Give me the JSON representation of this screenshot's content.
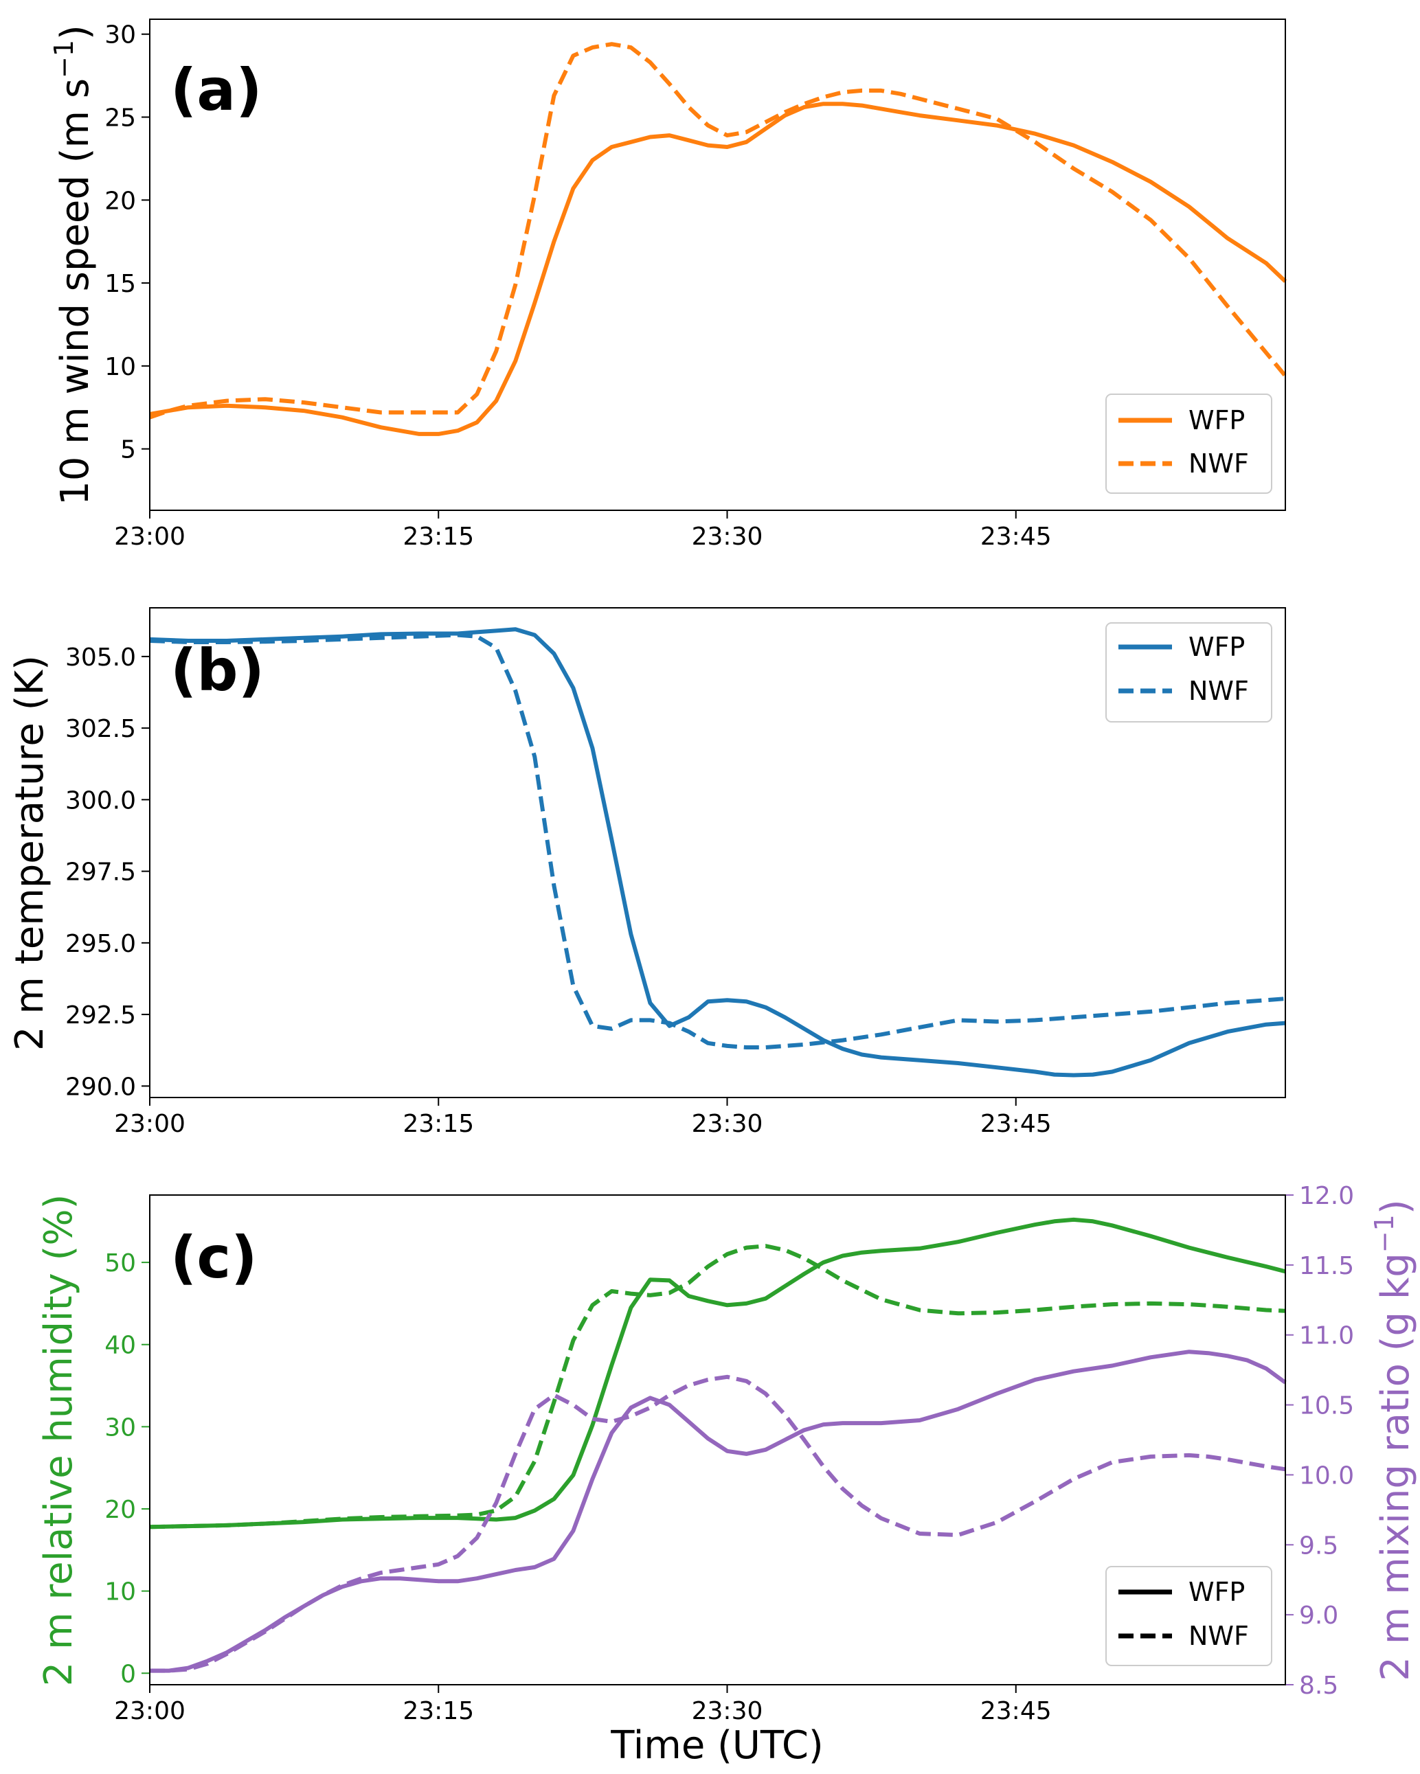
{
  "chart_data": [
    {
      "type": "line",
      "panel": "(a)",
      "ylabel": "10 m wind speed (m s",
      "ylabel_sup": "−1",
      "ylabel_end": ")",
      "x_ticks": [
        "23:00",
        "23:15",
        "23:30",
        "23:45"
      ],
      "xlim": [
        0,
        59
      ],
      "ylim": [
        1.3,
        30.9
      ],
      "y_ticks": [
        5,
        10,
        15,
        20,
        25,
        30
      ],
      "y_tick_labels": [
        "5",
        "10",
        "15",
        "20",
        "25",
        "30"
      ],
      "color": "#ff7f0e",
      "legend_position": "lower-right",
      "series": [
        {
          "name": "WFP",
          "style": "solid",
          "x": [
            0,
            2,
            4,
            6,
            8,
            10,
            12,
            14,
            15,
            16,
            17,
            18,
            19,
            20,
            21,
            22,
            23,
            24,
            25,
            26,
            27,
            28,
            29,
            30,
            31,
            32,
            33,
            34,
            35,
            36,
            37,
            38,
            39,
            40,
            42,
            44,
            46,
            48,
            50,
            52,
            54,
            56,
            58,
            59
          ],
          "values": [
            7.1,
            7.5,
            7.6,
            7.5,
            7.3,
            6.9,
            6.3,
            5.9,
            5.9,
            6.1,
            6.6,
            7.9,
            10.3,
            13.8,
            17.5,
            20.7,
            22.4,
            23.2,
            23.5,
            23.8,
            23.9,
            23.6,
            23.3,
            23.2,
            23.5,
            24.3,
            25.1,
            25.6,
            25.8,
            25.8,
            25.7,
            25.5,
            25.3,
            25.1,
            24.8,
            24.5,
            24.0,
            23.3,
            22.3,
            21.1,
            19.6,
            17.7,
            16.2,
            15.1
          ]
        },
        {
          "name": "NWF",
          "style": "dashed",
          "x": [
            0,
            1,
            2,
            4,
            6,
            8,
            10,
            12,
            14,
            16,
            17,
            18,
            19,
            20,
            21,
            22,
            23,
            24,
            25,
            26,
            27,
            28,
            29,
            30,
            31,
            32,
            33,
            34,
            35,
            36,
            37,
            38,
            39,
            40,
            42,
            44,
            46,
            48,
            50,
            52,
            54,
            56,
            58,
            59
          ],
          "values": [
            6.9,
            7.3,
            7.6,
            7.9,
            8.0,
            7.8,
            7.5,
            7.2,
            7.2,
            7.2,
            8.3,
            10.9,
            14.9,
            20.3,
            26.3,
            28.7,
            29.2,
            29.4,
            29.2,
            28.3,
            27.0,
            25.6,
            24.5,
            23.9,
            24.1,
            24.7,
            25.3,
            25.8,
            26.2,
            26.5,
            26.6,
            26.6,
            26.4,
            26.1,
            25.5,
            24.9,
            23.5,
            21.9,
            20.5,
            18.8,
            16.5,
            13.6,
            10.8,
            9.4
          ]
        }
      ]
    },
    {
      "type": "line",
      "panel": "(b)",
      "ylabel": "2 m temperature (K)",
      "x_ticks": [
        "23:00",
        "23:15",
        "23:30",
        "23:45"
      ],
      "xlim": [
        0,
        59
      ],
      "ylim": [
        289.6,
        306.7
      ],
      "y_ticks": [
        290.0,
        292.5,
        295.0,
        297.5,
        300.0,
        302.5,
        305.0
      ],
      "y_tick_labels": [
        "290.0",
        "292.5",
        "295.0",
        "297.5",
        "300.0",
        "302.5",
        "305.0"
      ],
      "color": "#1f77b4",
      "legend_position": "upper-right",
      "series": [
        {
          "name": "WFP",
          "style": "solid",
          "x": [
            0,
            2,
            4,
            6,
            8,
            10,
            12,
            14,
            16,
            17,
            18,
            19,
            20,
            21,
            22,
            23,
            24,
            25,
            26,
            27,
            28,
            29,
            30,
            31,
            32,
            33,
            34,
            35,
            36,
            37,
            38,
            40,
            42,
            44,
            46,
            47,
            48,
            49,
            50,
            52,
            54,
            56,
            58,
            59
          ],
          "values": [
            305.6,
            305.55,
            305.55,
            305.6,
            305.65,
            305.7,
            305.78,
            305.8,
            305.8,
            305.85,
            305.9,
            305.95,
            305.75,
            305.1,
            303.9,
            301.8,
            298.6,
            295.3,
            292.9,
            292.1,
            292.4,
            292.95,
            293.0,
            292.95,
            292.75,
            292.4,
            292.0,
            291.6,
            291.3,
            291.1,
            291.0,
            290.9,
            290.8,
            290.65,
            290.5,
            290.4,
            290.38,
            290.4,
            290.5,
            290.9,
            291.5,
            291.9,
            292.15,
            292.2
          ]
        },
        {
          "name": "NWF",
          "style": "dashed",
          "x": [
            0,
            2,
            4,
            6,
            8,
            10,
            12,
            14,
            16,
            17,
            18,
            19,
            20,
            21,
            22,
            23,
            24,
            25,
            26,
            27,
            28,
            29,
            30,
            31,
            32,
            34,
            36,
            38,
            40,
            42,
            44,
            46,
            48,
            50,
            52,
            54,
            56,
            58,
            59
          ],
          "values": [
            305.55,
            305.5,
            305.5,
            305.52,
            305.55,
            305.6,
            305.65,
            305.7,
            305.75,
            305.7,
            305.3,
            303.8,
            301.5,
            297.0,
            293.5,
            292.1,
            292.0,
            292.3,
            292.3,
            292.2,
            291.9,
            291.5,
            291.4,
            291.35,
            291.35,
            291.45,
            291.6,
            291.8,
            292.05,
            292.3,
            292.25,
            292.3,
            292.4,
            292.5,
            292.6,
            292.75,
            292.9,
            293.0,
            293.05
          ]
        }
      ]
    },
    {
      "type": "line",
      "panel": "(c)",
      "ylabel": "2 m relative humidity (%)",
      "ylabel2": "2 m mixing ratio (g kg",
      "ylabel2_sup": "−1",
      "ylabel2_end": ")",
      "x_ticks": [
        "23:00",
        "23:15",
        "23:30",
        "23:45"
      ],
      "xlim": [
        0,
        59
      ],
      "xlabel": "Time (UTC)",
      "ylim": [
        -1.4,
        58.2
      ],
      "y_ticks": [
        0,
        10,
        20,
        30,
        40,
        50
      ],
      "y_tick_labels": [
        "0",
        "10",
        "20",
        "30",
        "40",
        "50"
      ],
      "y2lim": [
        8.5,
        12.0
      ],
      "y2_ticks": [
        8.5,
        9.0,
        9.5,
        10.0,
        10.5,
        11.0,
        11.5,
        12.0
      ],
      "y2_tick_labels": [
        "8.5",
        "9.0",
        "9.5",
        "10.0",
        "10.5",
        "11.0",
        "11.5",
        "12.0"
      ],
      "colors": {
        "rh": "#2ca02c",
        "mixing_ratio": "#9467bd",
        "legend": "#000000"
      },
      "legend_position": "lower-right",
      "legend": [
        {
          "name": "WFP",
          "style": "solid"
        },
        {
          "name": "NWF",
          "style": "dashed"
        }
      ],
      "series": [
        {
          "name": "WFP relative humidity",
          "axis": "left",
          "color_key": "rh",
          "style": "solid",
          "x": [
            0,
            2,
            4,
            6,
            8,
            10,
            12,
            14,
            16,
            17,
            18,
            19,
            20,
            21,
            22,
            23,
            24,
            25,
            26,
            27,
            28,
            29,
            30,
            31,
            32,
            34,
            35,
            36,
            37,
            38,
            40,
            42,
            44,
            46,
            47,
            48,
            49,
            50,
            52,
            54,
            56,
            58,
            59
          ],
          "values": [
            17.8,
            17.9,
            18.0,
            18.2,
            18.4,
            18.7,
            18.8,
            18.9,
            18.9,
            18.8,
            18.7,
            18.9,
            19.8,
            21.2,
            24.1,
            30.2,
            37.5,
            44.5,
            47.9,
            47.8,
            45.9,
            45.3,
            44.8,
            45.0,
            45.6,
            48.6,
            50.0,
            50.8,
            51.2,
            51.4,
            51.7,
            52.5,
            53.6,
            54.6,
            55.0,
            55.2,
            55.0,
            54.5,
            53.2,
            51.8,
            50.6,
            49.5,
            48.9
          ]
        },
        {
          "name": "NWF relative humidity",
          "axis": "left",
          "color_key": "rh",
          "style": "dashed",
          "x": [
            0,
            2,
            4,
            6,
            8,
            10,
            12,
            14,
            16,
            17,
            18,
            19,
            20,
            21,
            22,
            23,
            24,
            25,
            26,
            27,
            28,
            29,
            30,
            31,
            32,
            33,
            34,
            35,
            36,
            38,
            40,
            42,
            44,
            46,
            48,
            50,
            52,
            54,
            56,
            58,
            59
          ],
          "values": [
            17.8,
            17.9,
            18.0,
            18.2,
            18.5,
            18.8,
            19.0,
            19.1,
            19.2,
            19.3,
            19.8,
            21.5,
            25.8,
            33.0,
            40.5,
            44.8,
            46.5,
            46.2,
            46.0,
            46.3,
            47.5,
            49.5,
            51.0,
            51.8,
            52.0,
            51.5,
            50.5,
            49.2,
            47.8,
            45.5,
            44.2,
            43.8,
            43.9,
            44.2,
            44.6,
            44.9,
            45.0,
            44.9,
            44.6,
            44.2,
            44.1
          ]
        },
        {
          "name": "WFP mixing ratio",
          "axis": "right",
          "color_key": "mixing_ratio",
          "style": "solid",
          "x": [
            0,
            1,
            2,
            3,
            4,
            5,
            6,
            7,
            8,
            9,
            10,
            11,
            12,
            13,
            14,
            15,
            16,
            17,
            18,
            19,
            20,
            21,
            22,
            23,
            24,
            25,
            26,
            27,
            28,
            29,
            30,
            31,
            32,
            33,
            34,
            35,
            36,
            37,
            38,
            40,
            42,
            44,
            46,
            48,
            50,
            52,
            54,
            55,
            56,
            57,
            58,
            59
          ],
          "values": [
            8.6,
            8.6,
            8.62,
            8.67,
            8.73,
            8.81,
            8.89,
            8.98,
            9.06,
            9.14,
            9.2,
            9.24,
            9.26,
            9.26,
            9.25,
            9.24,
            9.24,
            9.26,
            9.29,
            9.32,
            9.34,
            9.4,
            9.6,
            9.97,
            10.3,
            10.48,
            10.55,
            10.5,
            10.38,
            10.26,
            10.17,
            10.15,
            10.18,
            10.25,
            10.32,
            10.36,
            10.37,
            10.37,
            10.37,
            10.39,
            10.47,
            10.58,
            10.68,
            10.74,
            10.78,
            10.84,
            10.88,
            10.87,
            10.85,
            10.82,
            10.76,
            10.66
          ]
        },
        {
          "name": "NWF mixing ratio",
          "axis": "right",
          "color_key": "mixing_ratio",
          "style": "dashed",
          "x": [
            0,
            1,
            2,
            3,
            4,
            5,
            6,
            7,
            8,
            9,
            10,
            11,
            12,
            13,
            14,
            15,
            16,
            17,
            18,
            19,
            20,
            21,
            22,
            23,
            24,
            25,
            26,
            27,
            28,
            29,
            30,
            31,
            32,
            33,
            34,
            35,
            36,
            37,
            38,
            40,
            42,
            44,
            46,
            48,
            50,
            52,
            54,
            55,
            56,
            58,
            59
          ],
          "values": [
            8.6,
            8.6,
            8.61,
            8.65,
            8.72,
            8.8,
            8.88,
            8.97,
            9.06,
            9.14,
            9.21,
            9.26,
            9.3,
            9.32,
            9.34,
            9.36,
            9.42,
            9.55,
            9.8,
            10.15,
            10.47,
            10.57,
            10.5,
            10.4,
            10.38,
            10.42,
            10.48,
            10.57,
            10.64,
            10.68,
            10.7,
            10.67,
            10.58,
            10.43,
            10.25,
            10.06,
            9.9,
            9.78,
            9.69,
            9.58,
            9.57,
            9.66,
            9.81,
            9.97,
            10.09,
            10.13,
            10.14,
            10.13,
            10.11,
            10.06,
            10.04
          ]
        }
      ]
    }
  ]
}
